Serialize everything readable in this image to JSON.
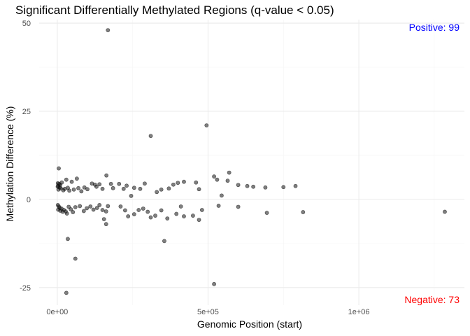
{
  "chart_data": {
    "type": "scatter",
    "title": "Significant Differentially Methylated Regions (q-value < 0.05)",
    "xlabel": "Genomic Position (start)",
    "ylabel": "Methylation Difference (%)",
    "xlim": [
      -60000,
      1350000
    ],
    "ylim": [
      -30,
      51
    ],
    "x_ticks": [
      0,
      500000,
      1000000
    ],
    "x_tick_labels": [
      "0e+00",
      "5e+05",
      "1e+06"
    ],
    "y_ticks": [
      -25,
      0,
      25,
      50
    ],
    "y_tick_labels": [
      "-25",
      "0",
      "25",
      "50"
    ],
    "grid": true,
    "annotations": [
      {
        "text": "Positive: 99",
        "position": "top-right",
        "color": "#0000ff"
      },
      {
        "text": "Negative: 73",
        "position": "bottom-right",
        "color": "#ff0000"
      }
    ],
    "points": [
      [
        168000,
        48.0
      ],
      [
        495000,
        21.0
      ],
      [
        310000,
        18.0
      ],
      [
        5000,
        8.8
      ],
      [
        163000,
        6.8
      ],
      [
        520000,
        6.5
      ],
      [
        570000,
        7.6
      ],
      [
        65000,
        5.9
      ],
      [
        30000,
        5.6
      ],
      [
        48000,
        5.0
      ],
      [
        15000,
        4.8
      ],
      [
        2000,
        4.6
      ],
      [
        6000,
        4.4
      ],
      [
        10000,
        4.1
      ],
      [
        3000,
        3.9
      ],
      [
        1500,
        3.6
      ],
      [
        8000,
        3.4
      ],
      [
        12000,
        3.1
      ],
      [
        4000,
        2.8
      ],
      [
        20000,
        2.6
      ],
      [
        25000,
        3.0
      ],
      [
        35000,
        3.3
      ],
      [
        40000,
        2.5
      ],
      [
        55000,
        2.8
      ],
      [
        70000,
        3.2
      ],
      [
        80000,
        2.3
      ],
      [
        90000,
        3.4
      ],
      [
        100000,
        2.9
      ],
      [
        115000,
        4.5
      ],
      [
        125000,
        4.2
      ],
      [
        130000,
        3.6
      ],
      [
        140000,
        4.3
      ],
      [
        150000,
        3.0
      ],
      [
        178000,
        4.4
      ],
      [
        185000,
        3.2
      ],
      [
        205000,
        4.4
      ],
      [
        220000,
        3.0
      ],
      [
        230000,
        3.9
      ],
      [
        245000,
        1.0
      ],
      [
        255000,
        3.3
      ],
      [
        275000,
        3.0
      ],
      [
        290000,
        4.5
      ],
      [
        330000,
        2.1
      ],
      [
        345000,
        2.8
      ],
      [
        370000,
        3.1
      ],
      [
        385000,
        4.2
      ],
      [
        400000,
        4.7
      ],
      [
        420000,
        5.0
      ],
      [
        460000,
        4.8
      ],
      [
        470000,
        2.9
      ],
      [
        530000,
        5.6
      ],
      [
        545000,
        1.1
      ],
      [
        565000,
        5.3
      ],
      [
        600000,
        4.1
      ],
      [
        630000,
        3.8
      ],
      [
        650000,
        3.6
      ],
      [
        690000,
        3.4
      ],
      [
        750000,
        3.5
      ],
      [
        790000,
        3.8
      ],
      [
        2000,
        -1.6
      ],
      [
        5000,
        -2.0
      ],
      [
        8000,
        -2.4
      ],
      [
        3000,
        -2.9
      ],
      [
        10000,
        -3.2
      ],
      [
        14000,
        -2.6
      ],
      [
        18000,
        -3.5
      ],
      [
        22000,
        -3.0
      ],
      [
        28000,
        -3.4
      ],
      [
        32000,
        -4.0
      ],
      [
        38000,
        -2.1
      ],
      [
        45000,
        -2.8
      ],
      [
        52000,
        -3.6
      ],
      [
        60000,
        -2.2
      ],
      [
        75000,
        -1.9
      ],
      [
        88000,
        -3.3
      ],
      [
        98000,
        -2.5
      ],
      [
        110000,
        -2.0
      ],
      [
        120000,
        -2.9
      ],
      [
        132000,
        -2.4
      ],
      [
        140000,
        -1.6
      ],
      [
        150000,
        -3.0
      ],
      [
        162000,
        -3.4
      ],
      [
        168000,
        -1.9
      ],
      [
        155000,
        -5.6
      ],
      [
        162000,
        -7.0
      ],
      [
        210000,
        -2.0
      ],
      [
        225000,
        -3.1
      ],
      [
        235000,
        -4.8
      ],
      [
        255000,
        -4.2
      ],
      [
        270000,
        -3.0
      ],
      [
        285000,
        -2.6
      ],
      [
        300000,
        -3.5
      ],
      [
        310000,
        -5.1
      ],
      [
        325000,
        -4.6
      ],
      [
        345000,
        -3.1
      ],
      [
        365000,
        -5.4
      ],
      [
        395000,
        -4.1
      ],
      [
        410000,
        -2.0
      ],
      [
        420000,
        -4.8
      ],
      [
        450000,
        -4.6
      ],
      [
        470000,
        -5.8
      ],
      [
        480000,
        -3.0
      ],
      [
        520000,
        -24.0
      ],
      [
        535000,
        -1.8
      ],
      [
        600000,
        -2.1
      ],
      [
        695000,
        -3.8
      ],
      [
        815000,
        -3.6
      ],
      [
        1285000,
        -3.5
      ],
      [
        35000,
        -11.2
      ],
      [
        60000,
        -16.8
      ],
      [
        30000,
        -26.5
      ],
      [
        355000,
        -11.8
      ]
    ]
  }
}
